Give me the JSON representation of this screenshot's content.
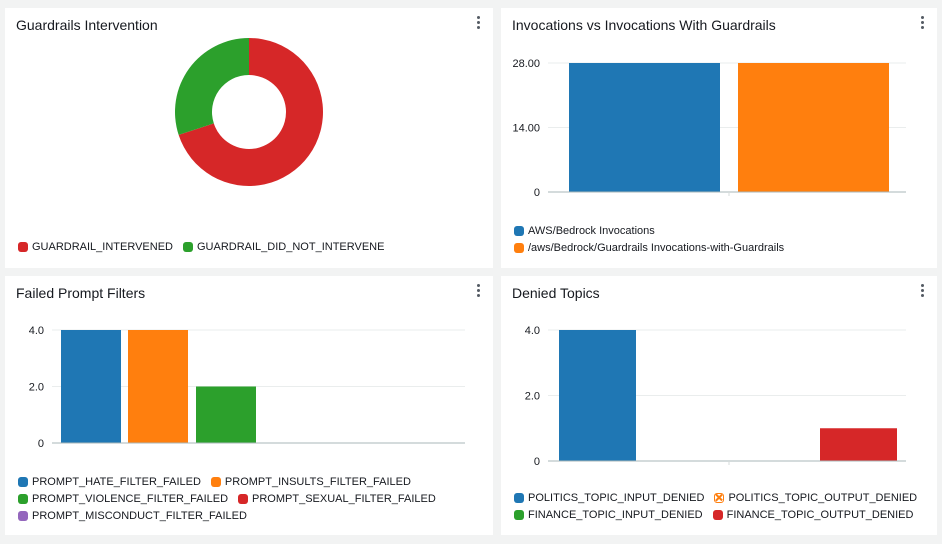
{
  "panels": {
    "intervention": {
      "title": "Guardrails Intervention"
    },
    "invocations": {
      "title": "Invocations vs Invocations With Guardrails"
    },
    "prompt_filters": {
      "title": "Failed Prompt Filters"
    },
    "denied_topics": {
      "title": "Denied Topics"
    }
  },
  "chart_data": [
    {
      "id": "intervention",
      "type": "pie",
      "donut": true,
      "series": [
        {
          "name": "GUARDRAIL_INTERVENED",
          "value": 70,
          "color": "#d62728"
        },
        {
          "name": "GUARDRAIL_DID_NOT_INTERVENE",
          "value": 30,
          "color": "#2ca02c"
        }
      ],
      "legend": "bottom-left"
    },
    {
      "id": "invocations",
      "type": "bar",
      "ylim": [
        0,
        28
      ],
      "yticks": [
        "0",
        "14.00",
        "28.00"
      ],
      "ytick_values": [
        0,
        14,
        28
      ],
      "series": [
        {
          "name": "AWS/Bedrock Invocations",
          "value": 28,
          "color": "#1f77b4"
        },
        {
          "name": "/aws/Bedrock/Guardrails Invocations-with-Guardrails",
          "value": 28,
          "color": "#ff7f0e"
        }
      ],
      "grid": true,
      "legend": "bottom-left"
    },
    {
      "id": "prompt_filters",
      "type": "bar",
      "ylim": [
        0,
        4
      ],
      "yticks": [
        "0",
        "2.0",
        "4.0"
      ],
      "ytick_values": [
        0,
        2,
        4
      ],
      "series": [
        {
          "name": "PROMPT_HATE_FILTER_FAILED",
          "value": 4,
          "color": "#1f77b4"
        },
        {
          "name": "PROMPT_INSULTS_FILTER_FAILED",
          "value": 4,
          "color": "#ff7f0e"
        },
        {
          "name": "PROMPT_VIOLENCE_FILTER_FAILED",
          "value": 2,
          "color": "#2ca02c"
        },
        {
          "name": "PROMPT_SEXUAL_FILTER_FAILED",
          "value": 0,
          "color": "#d62728"
        },
        {
          "name": "PROMPT_MISCONDUCT_FILTER_FAILED",
          "value": 0,
          "color": "#9467bd"
        }
      ],
      "grid": true,
      "legend": "bottom-left"
    },
    {
      "id": "denied_topics",
      "type": "bar",
      "ylim": [
        0,
        4
      ],
      "yticks": [
        "0",
        "2.0",
        "4.0"
      ],
      "ytick_values": [
        0,
        2,
        4
      ],
      "series": [
        {
          "name": "POLITICS_TOPIC_INPUT_DENIED",
          "value": 4,
          "color": "#1f77b4"
        },
        {
          "name": "POLITICS_TOPIC_OUTPUT_DENIED",
          "value": 0,
          "color": "#ff7f0e",
          "hidden": true
        },
        {
          "name": "FINANCE_TOPIC_INPUT_DENIED",
          "value": 0,
          "color": "#2ca02c"
        },
        {
          "name": "FINANCE_TOPIC_OUTPUT_DENIED",
          "value": 1,
          "color": "#d62728"
        }
      ],
      "grid": true,
      "legend": "bottom-left"
    }
  ]
}
